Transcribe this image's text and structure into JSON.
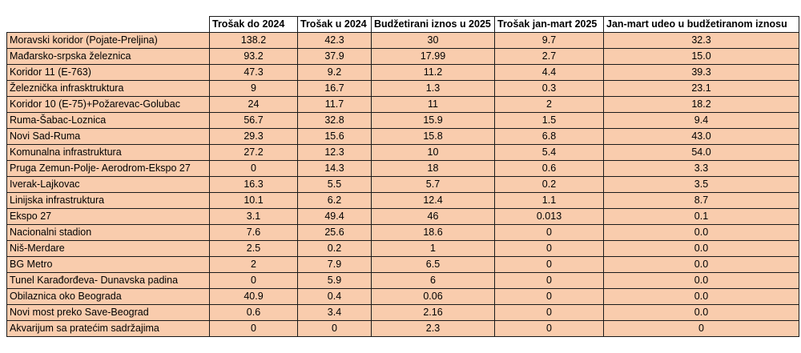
{
  "chart_data": {
    "type": "table",
    "columns": [
      "",
      "Trošak do 2024",
      "Trošak u 2024",
      "Budžetirani iznos u 2025",
      "Trošak jan-mart 2025",
      "Jan-mart udeo u budžetiranom iznosu"
    ],
    "rows": [
      [
        "Moravski koridor (Pojate-Preljina)",
        "138.2",
        "42.3",
        "30",
        "9.7",
        "32.3"
      ],
      [
        "Mađarsko-srpska železnica",
        "93.2",
        "37.9",
        "17.99",
        "2.7",
        "15.0"
      ],
      [
        "Koridor 11 (E-763)",
        "47.3",
        "9.2",
        "11.2",
        "4.4",
        "39.3"
      ],
      [
        "Železnička infrasktruktura",
        "9",
        "16.7",
        "1.3",
        "0.3",
        "23.1"
      ],
      [
        "Koridor 10 (E-75)+Požarevac-Golubac",
        "24",
        "11.7",
        "11",
        "2",
        "18.2"
      ],
      [
        "Ruma-Šabac-Loznica",
        "56.7",
        "32.8",
        "15.9",
        "1.5",
        "9.4"
      ],
      [
        "Novi Sad-Ruma",
        "29.3",
        "15.6",
        "15.8",
        "6.8",
        "43.0"
      ],
      [
        "Komunalna infrastruktura",
        "27.2",
        "12.3",
        "10",
        "5.4",
        "54.0"
      ],
      [
        "Pruga Zemun-Polje- Aerodrom-Ekspo 27",
        "0",
        "14.3",
        "18",
        "0.6",
        "3.3"
      ],
      [
        "Iverak-Lajkovac",
        "16.3",
        "5.5",
        "5.7",
        "0.2",
        "3.5"
      ],
      [
        "Linijska infrastruktura",
        "10.1",
        "6.2",
        "12.4",
        "1.1",
        "8.7"
      ],
      [
        "Ekspo 27",
        "3.1",
        "49.4",
        "46",
        "0.013",
        "0.1"
      ],
      [
        "Nacionalni stadion",
        "7.6",
        "25.6",
        "18.6",
        "0",
        "0.0"
      ],
      [
        "Niš-Merdare",
        "2.5",
        "0.2",
        "1",
        "0",
        "0.0"
      ],
      [
        "BG Metro",
        "2",
        "7.9",
        "6.5",
        "0",
        "0.0"
      ],
      [
        "Tunel Karađorđeva- Dunavska padina",
        "0",
        "5.9",
        "6",
        "0",
        "0.0"
      ],
      [
        "Obilaznica oko Beograda",
        "40.9",
        "0.4",
        "0.06",
        "0",
        "0.0"
      ],
      [
        "Novi most preko Save-Beograd",
        "0.6",
        "3.4",
        "2.16",
        "0",
        "0.0"
      ],
      [
        "Akvarijum sa pratećim sadržajima",
        "0",
        "0",
        "2.3",
        "0",
        "0"
      ]
    ]
  },
  "colors": {
    "cell_background": "#f9ccad",
    "header_background": "#ffffff",
    "border": "#1a1a1a"
  }
}
